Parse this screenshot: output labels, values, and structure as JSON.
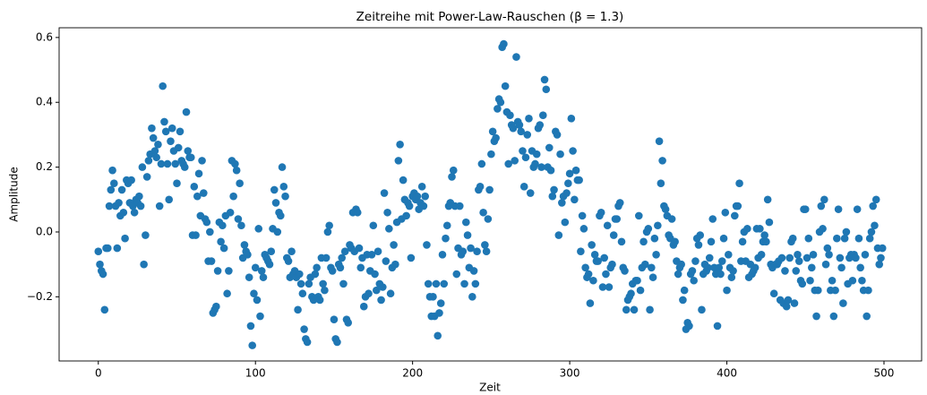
{
  "chart_data": {
    "type": "scatter",
    "title": "Zeitreihe mit Power-Law-Rauschen (β = 1.3)",
    "x_label": "Zeit",
    "y_label": "Amplitude",
    "color": "#1f77b4",
    "xlim": [
      -24.95,
      523.95
    ],
    "ylim": [
      -0.398,
      0.63
    ],
    "xticks": [
      0,
      100,
      200,
      300,
      400,
      500
    ],
    "yticks": [
      {
        "value": -0.2,
        "label": "−0.2"
      },
      {
        "value": 0,
        "label": "0.0"
      },
      0.2,
      0.4,
      0.6
    ],
    "x": [
      0,
      1,
      2,
      3,
      4,
      5,
      6,
      7,
      8,
      9,
      10,
      11,
      12,
      13,
      14,
      15,
      16,
      17,
      18,
      19,
      20,
      21,
      22,
      23,
      24,
      25,
      26,
      27,
      28,
      29,
      30,
      31,
      32,
      33,
      34,
      35,
      36,
      37,
      38,
      39,
      40,
      41,
      42,
      43,
      44,
      45,
      46,
      47,
      48,
      49,
      50,
      51,
      52,
      53,
      54,
      55,
      56,
      57,
      58,
      59,
      60,
      61,
      62,
      63,
      64,
      65,
      66,
      67,
      68,
      69,
      70,
      71,
      72,
      73,
      74,
      75,
      76,
      77,
      78,
      79,
      80,
      81,
      82,
      83,
      84,
      85,
      86,
      87,
      88,
      89,
      90,
      91,
      92,
      93,
      94,
      95,
      96,
      97,
      98,
      99,
      100,
      101,
      102,
      103,
      104,
      105,
      106,
      107,
      108,
      109,
      110,
      111,
      112,
      113,
      114,
      115,
      116,
      117,
      118,
      119,
      120,
      121,
      122,
      123,
      124,
      125,
      126,
      127,
      128,
      129,
      130,
      131,
      132,
      133,
      134,
      135,
      136,
      137,
      138,
      139,
      140,
      141,
      142,
      143,
      144,
      145,
      146,
      147,
      148,
      149,
      150,
      151,
      152,
      153,
      154,
      155,
      156,
      157,
      158,
      159,
      160,
      161,
      162,
      163,
      164,
      165,
      166,
      167,
      168,
      169,
      170,
      171,
      172,
      173,
      174,
      175,
      176,
      177,
      178,
      179,
      180,
      181,
      182,
      183,
      184,
      185,
      186,
      187,
      188,
      189,
      190,
      191,
      192,
      193,
      194,
      195,
      196,
      197,
      198,
      199,
      200,
      201,
      202,
      203,
      204,
      205,
      206,
      207,
      208,
      209,
      210,
      211,
      212,
      213,
      214,
      215,
      216,
      217,
      218,
      219,
      220,
      221,
      222,
      223,
      224,
      225,
      226,
      227,
      228,
      229,
      230,
      231,
      232,
      233,
      234,
      235,
      236,
      237,
      238,
      239,
      240,
      241,
      242,
      243,
      244,
      245,
      246,
      247,
      248,
      249,
      250,
      251,
      252,
      253,
      254,
      255,
      256,
      257,
      258,
      259,
      260,
      261,
      262,
      263,
      264,
      265,
      266,
      267,
      268,
      269,
      270,
      271,
      272,
      273,
      274,
      275,
      276,
      277,
      278,
      279,
      280,
      281,
      282,
      283,
      284,
      285,
      286,
      287,
      288,
      289,
      290,
      291,
      292,
      293,
      294,
      295,
      296,
      297,
      298,
      299,
      300,
      301,
      302,
      303,
      304,
      305,
      306,
      307,
      308,
      309,
      310,
      311,
      312,
      313,
      314,
      315,
      316,
      317,
      318,
      319,
      320,
      321,
      322,
      323,
      324,
      325,
      326,
      327,
      328,
      329,
      330,
      331,
      332,
      333,
      334,
      335,
      336,
      337,
      338,
      339,
      340,
      341,
      342,
      343,
      344,
      345,
      346,
      347,
      348,
      349,
      350,
      351,
      352,
      353,
      354,
      355,
      356,
      357,
      358,
      359,
      360,
      361,
      362,
      363,
      364,
      365,
      366,
      367,
      368,
      369,
      370,
      371,
      372,
      373,
      374,
      375,
      376,
      377,
      378,
      379,
      380,
      381,
      382,
      383,
      384,
      385,
      386,
      387,
      388,
      389,
      390,
      391,
      392,
      393,
      394,
      395,
      396,
      397,
      398,
      399,
      400,
      401,
      402,
      403,
      404,
      405,
      406,
      407,
      408,
      409,
      410,
      411,
      412,
      413,
      414,
      415,
      416,
      417,
      418,
      419,
      420,
      421,
      422,
      423,
      424,
      425,
      426,
      427,
      428,
      429,
      430,
      431,
      432,
      433,
      434,
      435,
      436,
      437,
      438,
      439,
      440,
      441,
      442,
      443,
      444,
      445,
      446,
      447,
      448,
      449,
      450,
      451,
      452,
      453,
      454,
      455,
      456,
      457,
      458,
      459,
      460,
      461,
      462,
      463,
      464,
      465,
      466,
      467,
      468,
      469,
      470,
      471,
      472,
      473,
      474,
      475,
      476,
      477,
      478,
      479,
      480,
      481,
      482,
      483,
      484,
      485,
      486,
      487,
      488,
      489,
      490,
      491,
      492,
      493,
      494,
      495,
      496,
      497,
      498,
      499
    ],
    "values": [
      -0.06,
      -0.1,
      -0.12,
      -0.13,
      -0.24,
      -0.05,
      -0.05,
      0.08,
      0.13,
      0.19,
      0.15,
      0.08,
      -0.05,
      0.09,
      0.05,
      0.13,
      0.06,
      -0.02,
      0.16,
      0.15,
      0.09,
      0.16,
      0.08,
      0.06,
      0.1,
      0.09,
      0.11,
      0.08,
      0.2,
      -0.1,
      -0.01,
      0.17,
      0.22,
      0.24,
      0.32,
      0.29,
      0.25,
      0.23,
      0.27,
      0.08,
      0.21,
      0.45,
      0.34,
      0.31,
      0.21,
      0.1,
      0.28,
      0.32,
      0.25,
      0.21,
      0.15,
      0.26,
      0.31,
      0.22,
      0.21,
      0.2,
      0.37,
      0.25,
      0.23,
      0.23,
      -0.01,
      0.14,
      -0.01,
      0.11,
      0.18,
      0.05,
      0.22,
      0.12,
      0.04,
      0.03,
      -0.09,
      0.0,
      -0.09,
      -0.25,
      -0.24,
      -0.23,
      -0.12,
      0.03,
      -0.03,
      0.02,
      -0.05,
      0.05,
      -0.19,
      -0.12,
      0.06,
      0.22,
      0.11,
      0.21,
      0.19,
      0.04,
      0.15,
      0.02,
      -0.08,
      -0.04,
      -0.06,
      -0.07,
      -0.14,
      -0.29,
      -0.35,
      -0.19,
      -0.11,
      -0.21,
      0.01,
      -0.26,
      -0.12,
      -0.14,
      -0.07,
      -0.08,
      -0.09,
      -0.1,
      -0.06,
      0.01,
      0.13,
      0.09,
      0.0,
      0.06,
      0.05,
      0.2,
      0.14,
      0.11,
      -0.08,
      -0.09,
      -0.14,
      -0.06,
      -0.13,
      -0.12,
      -0.14,
      -0.24,
      -0.13,
      -0.16,
      -0.19,
      -0.3,
      -0.33,
      -0.34,
      -0.16,
      -0.14,
      -0.2,
      -0.21,
      -0.13,
      -0.11,
      -0.2,
      -0.21,
      -0.08,
      -0.16,
      -0.18,
      -0.08,
      0.0,
      0.02,
      -0.11,
      -0.12,
      -0.27,
      -0.33,
      -0.34,
      -0.1,
      -0.11,
      -0.08,
      -0.16,
      -0.06,
      -0.27,
      -0.28,
      -0.04,
      -0.05,
      0.06,
      -0.06,
      0.07,
      0.06,
      -0.05,
      -0.11,
      -0.08,
      -0.23,
      -0.2,
      -0.07,
      -0.19,
      -0.12,
      -0.07,
      0.02,
      -0.13,
      -0.18,
      -0.06,
      -0.16,
      -0.21,
      -0.17,
      0.12,
      -0.09,
      0.06,
      0.01,
      -0.19,
      -0.11,
      -0.04,
      -0.1,
      0.03,
      0.22,
      0.27,
      0.04,
      0.16,
      0.1,
      0.05,
      0.09,
      0.08,
      -0.08,
      0.11,
      0.12,
      0.1,
      0.11,
      0.07,
      0.09,
      0.14,
      0.08,
      0.11,
      -0.04,
      -0.16,
      -0.2,
      -0.26,
      -0.2,
      -0.26,
      -0.16,
      -0.32,
      -0.25,
      -0.22,
      -0.07,
      -0.16,
      -0.02,
      0.02,
      0.08,
      0.09,
      0.17,
      0.19,
      0.08,
      -0.13,
      -0.05,
      0.08,
      -0.07,
      -0.06,
      -0.16,
      0.03,
      -0.01,
      -0.11,
      -0.05,
      -0.2,
      -0.12,
      -0.16,
      -0.06,
      0.13,
      0.14,
      0.21,
      0.06,
      -0.04,
      -0.06,
      0.04,
      0.13,
      0.24,
      0.31,
      0.28,
      0.29,
      0.38,
      0.41,
      0.4,
      0.57,
      0.58,
      0.45,
      0.37,
      0.21,
      0.36,
      0.33,
      0.32,
      0.22,
      0.54,
      0.34,
      0.33,
      0.31,
      0.25,
      0.14,
      0.23,
      0.3,
      0.35,
      0.12,
      0.25,
      0.2,
      0.21,
      0.24,
      0.32,
      0.33,
      0.2,
      0.36,
      0.47,
      0.44,
      0.2,
      0.26,
      0.19,
      0.11,
      0.13,
      0.31,
      0.3,
      -0.01,
      0.24,
      0.09,
      0.11,
      0.03,
      0.12,
      0.15,
      0.18,
      0.35,
      0.25,
      0.1,
      0.19,
      0.16,
      0.16,
      -0.06,
      0.05,
      0.01,
      -0.11,
      -0.14,
      -0.13,
      -0.22,
      -0.04,
      -0.15,
      -0.07,
      -0.09,
      -0.09,
      0.05,
      0.06,
      -0.17,
      -0.08,
      -0.13,
      0.02,
      -0.17,
      -0.11,
      -0.1,
      -0.01,
      0.04,
      0.04,
      0.08,
      0.09,
      -0.03,
      -0.11,
      -0.12,
      -0.24,
      -0.21,
      -0.2,
      -0.19,
      -0.16,
      -0.24,
      -0.15,
      -0.15,
      0.05,
      -0.18,
      -0.11,
      -0.03,
      -0.1,
      0.0,
      0.01,
      -0.24,
      -0.11,
      -0.14,
      -0.02,
      -0.07,
      0.02,
      0.28,
      0.15,
      0.22,
      0.08,
      0.07,
      0.05,
      -0.01,
      -0.02,
      0.04,
      -0.04,
      -0.03,
      -0.09,
      -0.13,
      -0.11,
      -0.1,
      -0.21,
      -0.18,
      -0.3,
      -0.28,
      -0.29,
      -0.13,
      -0.12,
      -0.15,
      -0.09,
      -0.02,
      -0.04,
      -0.01,
      -0.24,
      -0.13,
      -0.1,
      -0.12,
      -0.11,
      -0.08,
      -0.03,
      0.04,
      -0.11,
      -0.13,
      -0.29,
      -0.11,
      -0.13,
      -0.09,
      -0.02,
      0.06,
      -0.18,
      -0.07,
      -0.11,
      -0.14,
      -0.12,
      0.05,
      0.08,
      0.08,
      0.15,
      -0.09,
      -0.03,
      0.0,
      -0.09,
      0.01,
      -0.14,
      -0.1,
      -0.13,
      -0.12,
      -0.11,
      0.01,
      -0.08,
      0.01,
      -0.07,
      -0.03,
      -0.01,
      -0.03,
      0.1,
      0.03,
      -0.1,
      -0.11,
      -0.19,
      -0.1,
      -0.1,
      -0.09,
      -0.21,
      -0.08,
      -0.22,
      -0.12,
      -0.23,
      -0.21,
      -0.08,
      -0.03,
      -0.02,
      -0.22,
      -0.12,
      -0.07,
      -0.09,
      -0.15,
      -0.16,
      0.07,
      0.07,
      -0.08,
      -0.02,
      -0.15,
      -0.11,
      -0.07,
      -0.18,
      -0.26,
      -0.18,
      0.0,
      0.08,
      0.01,
      0.1,
      -0.1,
      -0.05,
      -0.07,
      -0.18,
      -0.15,
      -0.26,
      -0.18,
      -0.02,
      0.07,
      -0.08,
      -0.11,
      -0.22,
      -0.02,
      0.0,
      -0.16,
      -0.08,
      -0.07,
      -0.15,
      -0.07,
      -0.08,
      0.07,
      -0.02,
      -0.11,
      -0.15,
      -0.18,
      -0.07,
      -0.26,
      -0.18,
      -0.02,
      0.0,
      0.08,
      0.02,
      0.1,
      -0.05,
      -0.1,
      -0.08,
      -0.05
    ]
  }
}
